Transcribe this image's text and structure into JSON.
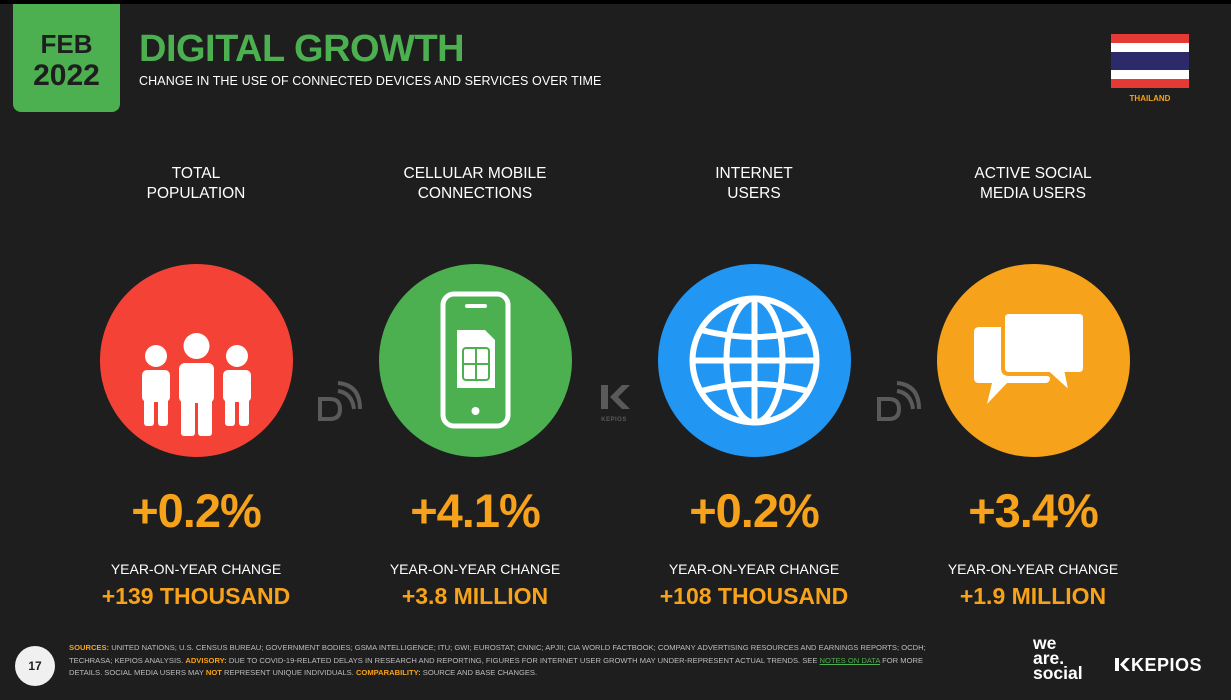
{
  "header": {
    "date_month": "FEB",
    "date_year": "2022",
    "title": "DIGITAL GROWTH",
    "subtitle": "CHANGE IN THE USE OF CONNECTED DEVICES AND SERVICES OVER TIME",
    "country": "THAILAND"
  },
  "colors": {
    "background": "#1e1e1e",
    "brand_green": "#4caf50",
    "accent_orange": "#f7a21b",
    "red": "#f44336",
    "blue": "#2196f3"
  },
  "metrics": [
    {
      "label_line1": "TOTAL",
      "label_line2": "POPULATION",
      "icon": "people-icon",
      "color": "#f44336",
      "change_pct": "+0.2%",
      "yoy_label": "YEAR-ON-YEAR CHANGE",
      "change_abs": "+139 THOUSAND"
    },
    {
      "label_line1": "CELLULAR MOBILE",
      "label_line2": "CONNECTIONS",
      "icon": "mobile-phone-icon",
      "color": "#4caf50",
      "change_pct": "+4.1%",
      "yoy_label": "YEAR-ON-YEAR CHANGE",
      "change_abs": "+3.8 MILLION"
    },
    {
      "label_line1": "INTERNET",
      "label_line2": "USERS",
      "icon": "globe-icon",
      "color": "#2196f3",
      "change_pct": "+0.2%",
      "yoy_label": "YEAR-ON-YEAR CHANGE",
      "change_abs": "+108 THOUSAND"
    },
    {
      "label_line1": "ACTIVE SOCIAL",
      "label_line2": "MEDIA USERS",
      "icon": "chat-bubbles-icon",
      "color": "#f7a21b",
      "change_pct": "+3.4%",
      "yoy_label": "YEAR-ON-YEAR CHANGE",
      "change_abs": "+1.9 MILLION"
    }
  ],
  "watermark": {
    "kepios_small": "KEPIOS"
  },
  "footer": {
    "page_number": "17",
    "sources_label": "SOURCES:",
    "sources_text": " UNITED NATIONS; U.S. CENSUS BUREAU; GOVERNMENT BODIES; GSMA INTELLIGENCE; ITU; GWI; EUROSTAT; CNNIC; APJII; CIA WORLD FACTBOOK; COMPANY ADVERTISING RESOURCES AND EARNINGS REPORTS; OCDH; TECHRASA; KEPIOS ANALYSIS. ",
    "advisory_label": "ADVISORY:",
    "advisory_text": " DUE TO COVID-19-RELATED DELAYS IN RESEARCH AND REPORTING, FIGURES FOR INTERNET USER GROWTH MAY UNDER-REPRESENT ACTUAL TRENDS. SEE ",
    "notes_link": "NOTES ON DATA",
    "advisory_text2": " FOR MORE DETAILS. SOCIAL MEDIA USERS MAY ",
    "not_word": "NOT",
    "advisory_text3": " REPRESENT UNIQUE INDIVIDUALS. ",
    "comparability_label": "COMPARABILITY:",
    "comparability_text": " SOURCE AND BASE CHANGES."
  },
  "logos": {
    "was_line1": "we",
    "was_line2": "are.",
    "was_line3": "social",
    "kepios": "KEPIOS"
  }
}
